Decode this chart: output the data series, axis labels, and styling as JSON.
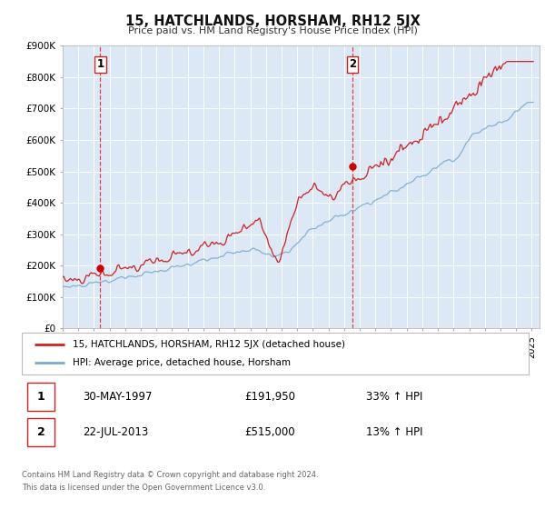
{
  "title": "15, HATCHLANDS, HORSHAM, RH12 5JX",
  "subtitle": "Price paid vs. HM Land Registry's House Price Index (HPI)",
  "hpi_color": "#7aaad0",
  "price_color": "#cc2222",
  "marker_color": "#cc0000",
  "dashed_color": "#dd4444",
  "bg_color": "#dce8f5",
  "grid_color": "#ffffff",
  "ylim": [
    0,
    900000
  ],
  "yticks": [
    0,
    100000,
    200000,
    300000,
    400000,
    500000,
    600000,
    700000,
    800000,
    900000
  ],
  "ytick_labels": [
    "£0",
    "£100K",
    "£200K",
    "£300K",
    "£400K",
    "£500K",
    "£600K",
    "£700K",
    "£800K",
    "£900K"
  ],
  "xlim_start": 1995.0,
  "xlim_end": 2025.5,
  "xticks": [
    1995,
    1996,
    1997,
    1998,
    1999,
    2000,
    2001,
    2002,
    2003,
    2004,
    2005,
    2006,
    2007,
    2008,
    2009,
    2010,
    2011,
    2012,
    2013,
    2014,
    2015,
    2016,
    2017,
    2018,
    2019,
    2020,
    2021,
    2022,
    2023,
    2024,
    2025
  ],
  "legend_label_red": "15, HATCHLANDS, HORSHAM, RH12 5JX (detached house)",
  "legend_label_blue": "HPI: Average price, detached house, Horsham",
  "sale1_date": 1997.41,
  "sale1_price": 191950,
  "sale1_label": "1",
  "sale1_text": "30-MAY-1997",
  "sale1_price_str": "£191,950",
  "sale1_pct": "33% ↑ HPI",
  "sale2_date": 2013.55,
  "sale2_price": 515000,
  "sale2_label": "2",
  "sale2_text": "22-JUL-2013",
  "sale2_price_str": "£515,000",
  "sale2_pct": "13% ↑ HPI",
  "footnote1": "Contains HM Land Registry data © Crown copyright and database right 2024.",
  "footnote2": "This data is licensed under the Open Government Licence v3.0."
}
